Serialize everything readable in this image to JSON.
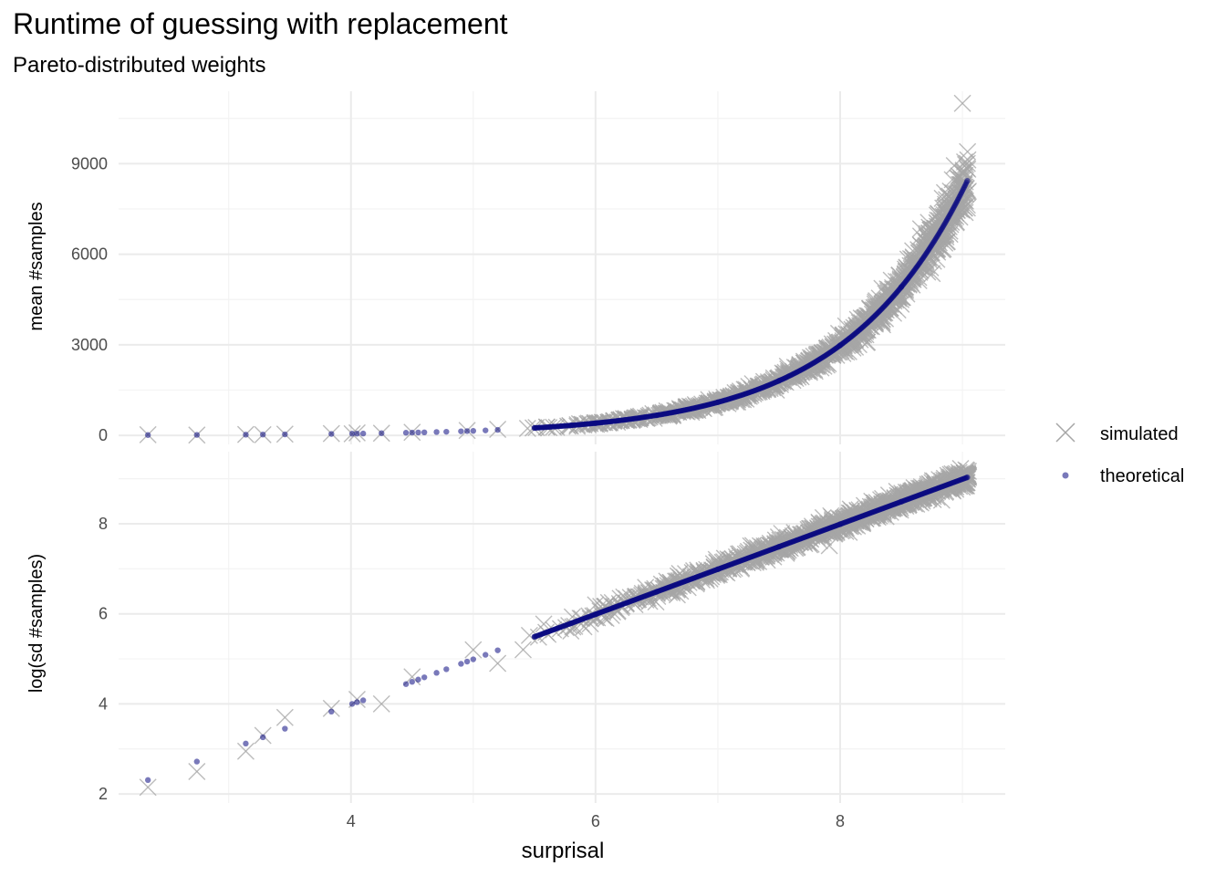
{
  "title": "Runtime of guessing with replacement",
  "subtitle": "Pareto-distributed weights",
  "colors": {
    "simulated": "#a6a6a6",
    "theoretical": "#0b0b82",
    "grid_major": "#ebebeb",
    "grid_minor": "#f3f3f3"
  },
  "chart_data": {
    "type": "scatter",
    "title": "Runtime of guessing with replacement",
    "subtitle": "Pareto-distributed weights",
    "xlabel": "surprisal",
    "xlim": [
      2.1,
      9.35
    ],
    "x_ticks": [
      4,
      6,
      8
    ],
    "grid": true,
    "legend_position": "right",
    "legend": [
      {
        "name": "simulated",
        "marker": "cross",
        "color": "#a6a6a6"
      },
      {
        "name": "theoretical",
        "marker": "dot",
        "color": "#0b0b82"
      }
    ],
    "panels": [
      {
        "ylabel": "mean #samples",
        "ylim": [
          -300,
          11400
        ],
        "y_ticks": [
          0,
          3000,
          6000,
          9000
        ],
        "series": [
          {
            "name": "theoretical",
            "model": "exp(x)",
            "x": [
              2.34,
              2.74,
              3.14,
              3.28,
              3.46,
              3.84,
              4.01,
              4.05,
              4.1,
              4.25,
              4.45,
              4.5,
              4.55,
              4.6,
              4.7,
              4.78,
              4.9,
              4.95,
              5.0,
              5.1,
              5.2,
              5.5,
              5.8,
              6.0,
              6.5,
              7.0,
              7.5,
              8.0,
              8.5,
              9.04
            ],
            "y": [
              10,
              15,
              23,
              27,
              32,
              47,
              55,
              57,
              60,
              70,
              86,
              90,
              95,
              99,
              110,
              119,
              134,
              141,
              148,
              164,
              181,
              245,
              330,
              403,
              665,
              1097,
              1808,
              2981,
              4915,
              8432
            ]
          },
          {
            "name": "simulated",
            "model": "exp(x) with noise",
            "x": [
              2.34,
              2.74,
              3.14,
              3.28,
              3.46,
              3.84,
              4.01,
              4.05,
              4.25,
              4.5,
              4.95,
              5.2,
              6.0,
              7.0,
              8.0,
              9.0
            ],
            "y": [
              20,
              10,
              30,
              20,
              40,
              60,
              50,
              80,
              70,
              100,
              160,
              200,
              420,
              1100,
              3000,
              11000
            ]
          }
        ]
      },
      {
        "ylabel": "log(sd #samples)",
        "ylim": [
          1.8,
          9.6
        ],
        "y_ticks": [
          2,
          4,
          6,
          8
        ],
        "series": [
          {
            "name": "theoretical",
            "model": "x",
            "x": [
              2.34,
              2.74,
              3.14,
              3.28,
              3.46,
              3.84,
              4.01,
              4.05,
              4.1,
              4.45,
              4.5,
              4.55,
              4.6,
              4.7,
              4.78,
              4.9,
              4.95,
              5.0,
              5.1,
              5.2,
              5.5,
              5.8,
              6.0,
              6.5,
              7.0,
              7.5,
              8.0,
              8.5,
              9.04
            ],
            "y": [
              2.31,
              2.72,
              3.12,
              3.26,
              3.45,
              3.83,
              4.0,
              4.04,
              4.08,
              4.44,
              4.49,
              4.54,
              4.59,
              4.69,
              4.77,
              4.89,
              4.94,
              4.99,
              5.09,
              5.19,
              5.49,
              5.79,
              5.99,
              6.49,
              6.99,
              7.49,
              7.99,
              8.49,
              9.03
            ]
          },
          {
            "name": "simulated",
            "model": "x with noise",
            "x": [
              2.34,
              2.74,
              3.14,
              3.28,
              3.46,
              3.84,
              4.05,
              4.25,
              4.5,
              5.0,
              5.2,
              6.0,
              7.0,
              8.0,
              9.0
            ],
            "y": [
              2.15,
              2.5,
              2.95,
              3.3,
              3.7,
              3.9,
              4.1,
              4.0,
              4.6,
              5.2,
              4.9,
              6.2,
              7.0,
              8.0,
              9.1
            ]
          }
        ]
      }
    ]
  }
}
